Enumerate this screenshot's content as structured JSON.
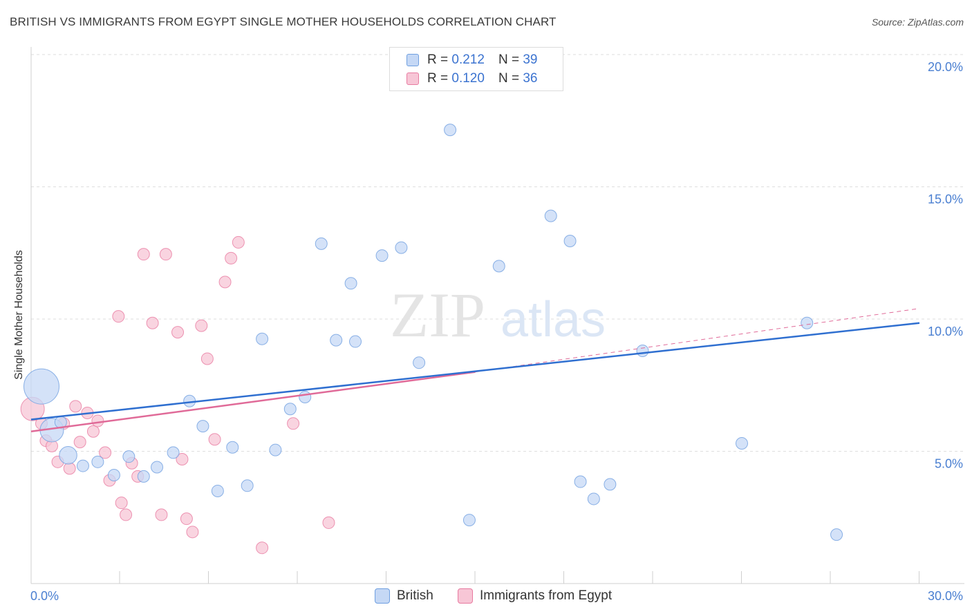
{
  "header": {
    "title": "BRITISH VS IMMIGRANTS FROM EGYPT SINGLE MOTHER HOUSEHOLDS CORRELATION CHART",
    "source": "Source: ZipAtlas.com"
  },
  "watermark": {
    "zip": "ZIP",
    "atlas": "atlas"
  },
  "colors": {
    "british": "#6f9fe0",
    "british_fill": "#c5d8f5",
    "egypt": "#e87aa0",
    "egypt_fill": "#f7c6d6",
    "british_line": "#2f6fd0",
    "egypt_line": "#e06a98",
    "tick_text": "#4a7fd1"
  },
  "legend_top": {
    "british": {
      "r_label": "R =",
      "r_value": "0.212",
      "n_label": "N =",
      "n_value": "39"
    },
    "egypt": {
      "r_label": "R =",
      "r_value": "0.120",
      "n_label": "N =",
      "n_value": "36"
    }
  },
  "legend_bottom": {
    "british": "British",
    "egypt": "Immigrants from Egypt"
  },
  "chart_data": {
    "type": "scatter",
    "title": "BRITISH VS IMMIGRANTS FROM EGYPT SINGLE MOTHER HOUSEHOLDS CORRELATION CHART",
    "xlabel": "",
    "ylabel": "Single Mother Households",
    "xlim": [
      0,
      30
    ],
    "ylim": [
      0,
      20
    ],
    "y_ticks": [
      5,
      10,
      15,
      20
    ],
    "y_tick_labels": [
      "5.0%",
      "10.0%",
      "15.0%",
      "20.0%"
    ],
    "x_tick_labels": [
      "0.0%",
      "30.0%"
    ],
    "x_tick_labels_values": [
      0,
      30
    ],
    "x_minor_ticks": [
      3,
      6,
      9,
      12,
      15,
      18,
      21,
      24,
      27,
      30
    ],
    "grid": true,
    "series": [
      {
        "name": "British",
        "points": [
          {
            "x": 0.35,
            "y": 7.45,
            "s": 3
          },
          {
            "x": 0.7,
            "y": 5.8,
            "s": 2
          },
          {
            "x": 1.25,
            "y": 4.85,
            "s": 1.5
          },
          {
            "x": 1.75,
            "y": 4.45,
            "s": 1
          },
          {
            "x": 2.25,
            "y": 4.6,
            "s": 1
          },
          {
            "x": 2.8,
            "y": 4.1,
            "s": 1
          },
          {
            "x": 3.3,
            "y": 4.8,
            "s": 1
          },
          {
            "x": 3.8,
            "y": 4.05,
            "s": 1
          },
          {
            "x": 4.25,
            "y": 4.4,
            "s": 1
          },
          {
            "x": 4.8,
            "y": 4.95,
            "s": 1
          },
          {
            "x": 5.35,
            "y": 6.9,
            "s": 1
          },
          {
            "x": 5.8,
            "y": 5.95,
            "s": 1
          },
          {
            "x": 6.3,
            "y": 3.5,
            "s": 1
          },
          {
            "x": 6.8,
            "y": 5.15,
            "s": 1
          },
          {
            "x": 7.3,
            "y": 3.7,
            "s": 1
          },
          {
            "x": 7.8,
            "y": 9.25,
            "s": 1
          },
          {
            "x": 8.25,
            "y": 5.05,
            "s": 1
          },
          {
            "x": 8.75,
            "y": 6.6,
            "s": 1
          },
          {
            "x": 9.25,
            "y": 7.05,
            "s": 1
          },
          {
            "x": 9.8,
            "y": 12.85,
            "s": 1
          },
          {
            "x": 10.3,
            "y": 9.2,
            "s": 1
          },
          {
            "x": 10.8,
            "y": 11.35,
            "s": 1
          },
          {
            "x": 10.95,
            "y": 9.15,
            "s": 1
          },
          {
            "x": 11.85,
            "y": 12.4,
            "s": 1
          },
          {
            "x": 12.5,
            "y": 12.7,
            "s": 1
          },
          {
            "x": 13.1,
            "y": 8.35,
            "s": 1
          },
          {
            "x": 14.15,
            "y": 17.15,
            "s": 1
          },
          {
            "x": 14.8,
            "y": 2.4,
            "s": 1
          },
          {
            "x": 15.8,
            "y": 12.0,
            "s": 1
          },
          {
            "x": 17.55,
            "y": 13.9,
            "s": 1
          },
          {
            "x": 18.2,
            "y": 12.95,
            "s": 1
          },
          {
            "x": 18.55,
            "y": 3.85,
            "s": 1
          },
          {
            "x": 19.0,
            "y": 3.2,
            "s": 1
          },
          {
            "x": 19.55,
            "y": 3.75,
            "s": 1
          },
          {
            "x": 20.65,
            "y": 8.8,
            "s": 1
          },
          {
            "x": 24.0,
            "y": 5.3,
            "s": 1
          },
          {
            "x": 26.2,
            "y": 9.85,
            "s": 1
          },
          {
            "x": 27.2,
            "y": 1.85,
            "s": 1
          },
          {
            "x": 1.0,
            "y": 6.1,
            "s": 1
          }
        ],
        "trend": {
          "x": [
            0,
            30
          ],
          "y": [
            6.2,
            9.85
          ]
        }
      },
      {
        "name": "Immigrants from Egypt",
        "points": [
          {
            "x": 0.05,
            "y": 6.6,
            "s": 2
          },
          {
            "x": 0.35,
            "y": 6.05,
            "s": 1
          },
          {
            "x": 0.5,
            "y": 5.4,
            "s": 1
          },
          {
            "x": 0.7,
            "y": 5.2,
            "s": 1
          },
          {
            "x": 0.9,
            "y": 4.6,
            "s": 1
          },
          {
            "x": 1.1,
            "y": 6.05,
            "s": 1
          },
          {
            "x": 1.3,
            "y": 4.35,
            "s": 1
          },
          {
            "x": 1.5,
            "y": 6.7,
            "s": 1
          },
          {
            "x": 1.65,
            "y": 5.35,
            "s": 1
          },
          {
            "x": 1.9,
            "y": 6.45,
            "s": 1
          },
          {
            "x": 2.1,
            "y": 5.75,
            "s": 1
          },
          {
            "x": 2.25,
            "y": 6.15,
            "s": 1
          },
          {
            "x": 2.5,
            "y": 4.95,
            "s": 1
          },
          {
            "x": 2.65,
            "y": 3.9,
            "s": 1
          },
          {
            "x": 2.95,
            "y": 10.1,
            "s": 1
          },
          {
            "x": 3.05,
            "y": 3.05,
            "s": 1
          },
          {
            "x": 3.2,
            "y": 2.6,
            "s": 1
          },
          {
            "x": 3.4,
            "y": 4.55,
            "s": 1
          },
          {
            "x": 3.6,
            "y": 4.05,
            "s": 1
          },
          {
            "x": 3.8,
            "y": 12.45,
            "s": 1
          },
          {
            "x": 4.1,
            "y": 9.85,
            "s": 1
          },
          {
            "x": 4.4,
            "y": 2.6,
            "s": 1
          },
          {
            "x": 4.55,
            "y": 12.45,
            "s": 1
          },
          {
            "x": 4.95,
            "y": 9.5,
            "s": 1
          },
          {
            "x": 5.1,
            "y": 4.7,
            "s": 1
          },
          {
            "x": 5.25,
            "y": 2.45,
            "s": 1
          },
          {
            "x": 5.45,
            "y": 1.95,
            "s": 1
          },
          {
            "x": 5.75,
            "y": 9.75,
            "s": 1
          },
          {
            "x": 5.95,
            "y": 8.5,
            "s": 1
          },
          {
            "x": 6.2,
            "y": 5.45,
            "s": 1
          },
          {
            "x": 6.55,
            "y": 11.4,
            "s": 1
          },
          {
            "x": 6.75,
            "y": 12.3,
            "s": 1
          },
          {
            "x": 7.0,
            "y": 12.9,
            "s": 1
          },
          {
            "x": 7.8,
            "y": 1.35,
            "s": 1
          },
          {
            "x": 8.85,
            "y": 6.05,
            "s": 1
          },
          {
            "x": 10.05,
            "y": 2.3,
            "s": 1
          }
        ],
        "trend": {
          "x": [
            0,
            15
          ],
          "y": [
            5.75,
            8.0
          ]
        },
        "trend_dashed": {
          "x": [
            15,
            30
          ],
          "y": [
            8.0,
            10.4
          ]
        }
      }
    ]
  }
}
